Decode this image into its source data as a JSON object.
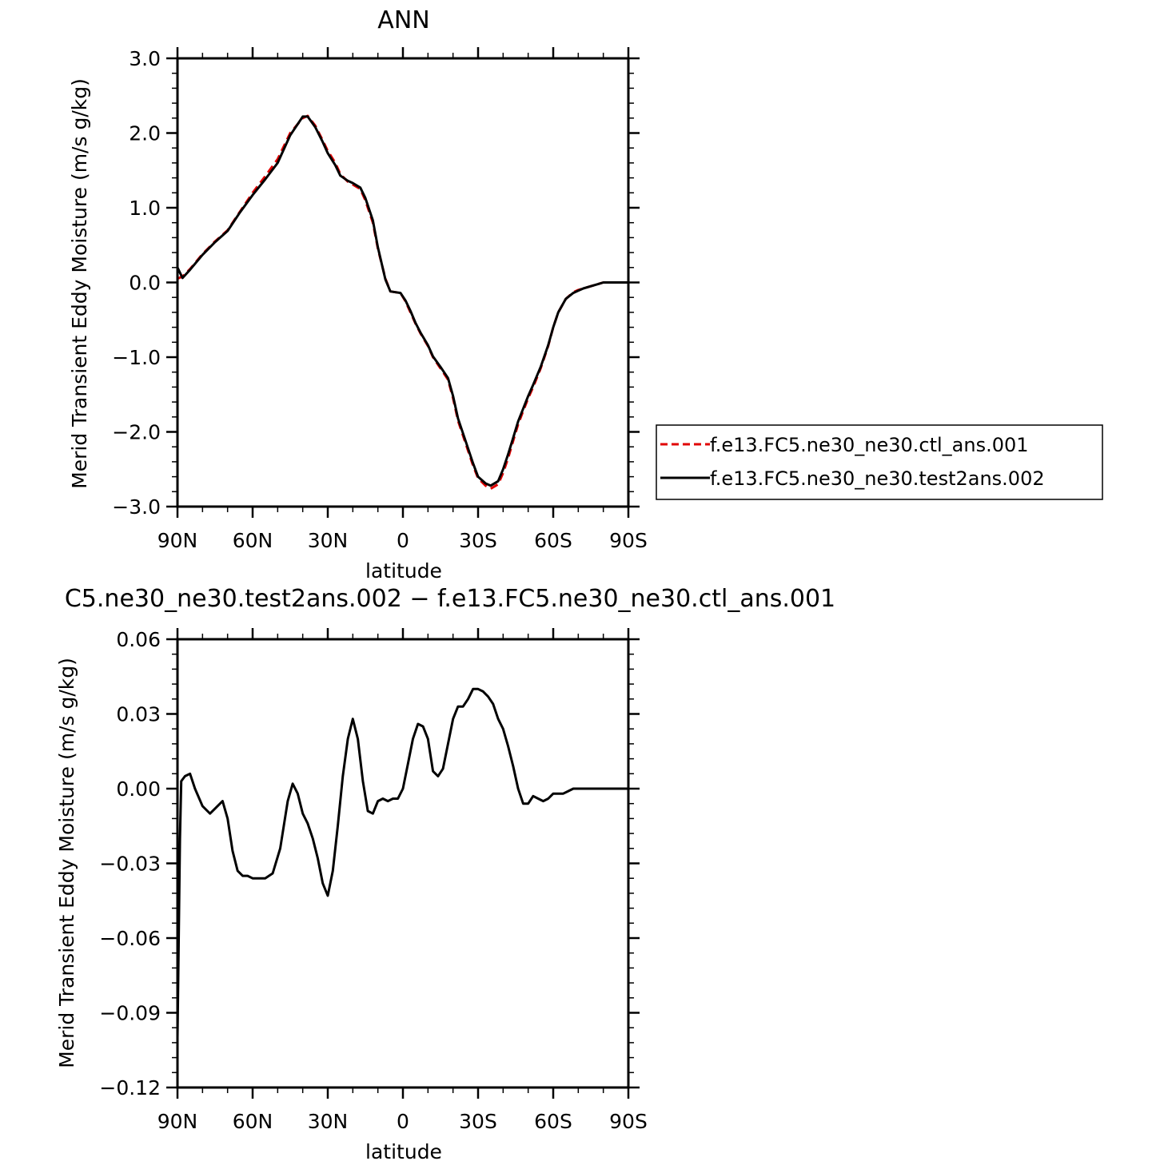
{
  "chart_data": [
    {
      "type": "line",
      "title": "ANN",
      "xlabel": "latitude",
      "ylabel": "Merid Transient Eddy Moisture (m/s g/kg)",
      "xlim": [
        90,
        -90
      ],
      "ylim": [
        -3.0,
        3.0
      ],
      "x_tick_values": [
        90,
        60,
        30,
        0,
        -30,
        -60,
        -90
      ],
      "x_tick_labels": [
        "90N",
        "60N",
        "30N",
        "0",
        "30S",
        "60S",
        "90S"
      ],
      "y_tick_values": [
        3.0,
        2.0,
        1.0,
        0.0,
        -1.0,
        -2.0,
        -3.0
      ],
      "y_tick_labels": [
        "3.0",
        "2.0",
        "1.0",
        "0.0",
        "−1.0",
        "−2.0",
        "−3.0"
      ],
      "legend_position": "right",
      "x": [
        90,
        88,
        85,
        80,
        75,
        70,
        65,
        60,
        55,
        50,
        45,
        40,
        38,
        35,
        32,
        30,
        27,
        25,
        22,
        20,
        17,
        15,
        12,
        10,
        7,
        5,
        3,
        1,
        -1,
        -3,
        -5,
        -7,
        -10,
        -12,
        -15,
        -18,
        -20,
        -22,
        -25,
        -28,
        -30,
        -33,
        -35,
        -38,
        -40,
        -42,
        -44,
        -46,
        -48,
        -50,
        -52,
        -55,
        -58,
        -60,
        -62,
        -65,
        -68,
        -70,
        -72,
        -75,
        -78,
        -80,
        -82,
        -85,
        -88,
        -90
      ],
      "series": [
        {
          "name": "f.e13.FC5.ne30_ne30.ctl_ans.001",
          "color": "#e00000",
          "dash": "dashed",
          "values": [
            0.05,
            0.08,
            0.18,
            0.38,
            0.55,
            0.7,
            0.95,
            1.2,
            1.42,
            1.65,
            2.0,
            2.2,
            2.23,
            2.1,
            1.9,
            1.76,
            1.6,
            1.45,
            1.35,
            1.31,
            1.25,
            1.1,
            0.8,
            0.45,
            0.05,
            -0.12,
            -0.13,
            -0.14,
            -0.25,
            -0.4,
            -0.55,
            -0.68,
            -0.85,
            -1.0,
            -1.15,
            -1.3,
            -1.55,
            -1.85,
            -2.15,
            -2.45,
            -2.62,
            -2.72,
            -2.76,
            -2.7,
            -2.55,
            -2.35,
            -2.12,
            -1.9,
            -1.72,
            -1.55,
            -1.4,
            -1.15,
            -0.85,
            -0.6,
            -0.4,
            -0.22,
            -0.13,
            -0.1,
            -0.08,
            -0.05,
            -0.02,
            0.0,
            0.0,
            0.0,
            0.0,
            0.0
          ]
        },
        {
          "name": "f.e13.FC5.ne30_ne30.test2ans.002",
          "color": "#000000",
          "dash": "solid",
          "values": [
            0.2,
            0.06,
            0.17,
            0.37,
            0.54,
            0.69,
            0.94,
            1.17,
            1.38,
            1.6,
            1.97,
            2.22,
            2.22,
            2.08,
            1.88,
            1.73,
            1.57,
            1.43,
            1.36,
            1.33,
            1.27,
            1.13,
            0.83,
            0.47,
            0.04,
            -0.12,
            -0.13,
            -0.14,
            -0.24,
            -0.38,
            -0.54,
            -0.67,
            -0.84,
            -0.99,
            -1.13,
            -1.28,
            -1.52,
            -1.82,
            -2.12,
            -2.42,
            -2.6,
            -2.69,
            -2.72,
            -2.66,
            -2.5,
            -2.3,
            -2.08,
            -1.86,
            -1.69,
            -1.52,
            -1.37,
            -1.13,
            -0.84,
            -0.6,
            -0.4,
            -0.22,
            -0.14,
            -0.11,
            -0.08,
            -0.05,
            -0.02,
            0.0,
            0.0,
            0.0,
            0.0,
            0.0
          ]
        }
      ]
    },
    {
      "type": "line",
      "title": "C5.ne30_ne30.test2ans.002 − f.e13.FC5.ne30_ne30.ctl_ans.001",
      "xlabel": "latitude",
      "ylabel": "Merid Transient Eddy Moisture (m/s g/kg)",
      "xlim": [
        90,
        -90
      ],
      "ylim": [
        -0.12,
        0.06
      ],
      "x_tick_values": [
        90,
        60,
        30,
        0,
        -30,
        -60,
        -90
      ],
      "x_tick_labels": [
        "90N",
        "60N",
        "30N",
        "0",
        "30S",
        "60S",
        "90S"
      ],
      "y_tick_values": [
        0.06,
        0.03,
        0.0,
        -0.03,
        -0.06,
        -0.09,
        -0.12
      ],
      "y_tick_labels": [
        "0.06",
        "0.03",
        "0.00",
        "−0.03",
        "−0.06",
        "−0.09",
        "−0.12"
      ],
      "x": [
        90,
        89,
        88.5,
        87,
        85,
        83,
        80,
        77,
        75,
        72,
        70,
        68,
        66,
        64,
        62,
        60,
        58,
        55,
        52,
        49,
        46,
        44,
        42,
        40,
        38,
        36,
        34,
        32,
        30,
        28,
        26,
        24,
        22,
        20,
        18,
        16,
        14,
        12,
        10,
        8,
        6,
        4,
        2,
        0,
        -2,
        -4,
        -6,
        -8,
        -10,
        -12,
        -14,
        -16,
        -18,
        -20,
        -22,
        -24,
        -26,
        -28,
        -30,
        -32,
        -34,
        -36,
        -38,
        -40,
        -42,
        -44,
        -46,
        -48,
        -50,
        -52,
        -54,
        -56,
        -58,
        -60,
        -62,
        -64,
        -66,
        -68,
        -70,
        -72,
        -74,
        -76,
        -78,
        -80,
        -82,
        -84,
        -86,
        -88,
        -90
      ],
      "series": [
        {
          "name": "",
          "color": "#000000",
          "dash": "solid",
          "values": [
            -0.1,
            -0.02,
            0.003,
            0.005,
            0.006,
            0.0,
            -0.007,
            -0.01,
            -0.008,
            -0.005,
            -0.012,
            -0.025,
            -0.033,
            -0.035,
            -0.035,
            -0.036,
            -0.036,
            -0.036,
            -0.034,
            -0.024,
            -0.005,
            0.002,
            -0.002,
            -0.01,
            -0.014,
            -0.02,
            -0.028,
            -0.038,
            -0.043,
            -0.033,
            -0.015,
            0.005,
            0.02,
            0.028,
            0.02,
            0.003,
            -0.009,
            -0.01,
            -0.005,
            -0.004,
            -0.005,
            -0.004,
            -0.004,
            0.0,
            0.01,
            0.02,
            0.026,
            0.025,
            0.02,
            0.007,
            0.005,
            0.008,
            0.018,
            0.028,
            0.033,
            0.033,
            0.036,
            0.04,
            0.04,
            0.039,
            0.037,
            0.034,
            0.028,
            0.024,
            0.017,
            0.009,
            0.0,
            -0.006,
            -0.006,
            -0.003,
            -0.004,
            -0.005,
            -0.004,
            -0.002,
            -0.002,
            -0.002,
            -0.001,
            0.0,
            0.0,
            0.0,
            0.0,
            0.0,
            0.0,
            0.0,
            0.0,
            0.0,
            0.0,
            0.0,
            0.0
          ]
        }
      ]
    }
  ]
}
